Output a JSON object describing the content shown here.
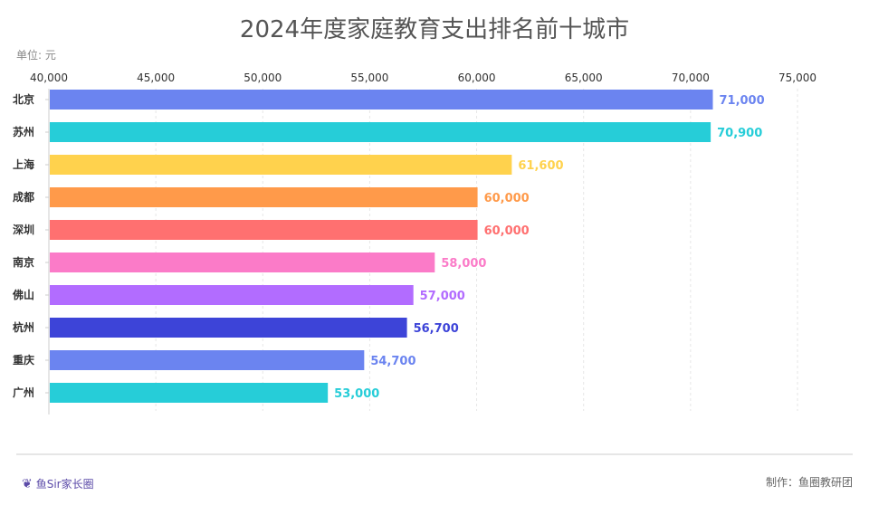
{
  "chart_data": {
    "type": "bar",
    "orientation": "horizontal",
    "title": "2024年度家庭教育支出排名前十城市",
    "unit_label": "单位: 元",
    "categories": [
      "北京",
      "苏州",
      "上海",
      "成都",
      "深圳",
      "南京",
      "佛山",
      "杭州",
      "重庆",
      "广州"
    ],
    "values": [
      71000,
      70900,
      61600,
      60000,
      60000,
      58000,
      57000,
      56700,
      54700,
      53000
    ],
    "value_labels": [
      "71,000",
      "70,900",
      "61,600",
      "60,000",
      "60,000",
      "58,000",
      "57,000",
      "56,700",
      "54,700",
      "53,000"
    ],
    "colors": [
      "#6b84f0",
      "#26cdd8",
      "#ffd24d",
      "#ff9a4a",
      "#ff7070",
      "#fb7bc8",
      "#b26cff",
      "#3d44d8",
      "#6b84f0",
      "#26cdd8"
    ],
    "xlim": [
      40000,
      75000
    ],
    "x_ticks": [
      40000,
      45000,
      50000,
      55000,
      60000,
      65000,
      70000,
      75000
    ],
    "x_tick_labels": [
      "40,000",
      "45,000",
      "50,000",
      "55,000",
      "60,000",
      "65,000",
      "70,000",
      "75,000"
    ],
    "x_axis_position": "top",
    "grid": "vertical dashed"
  },
  "footer": {
    "logo_text": "鱼Sir家长圈",
    "credit": "制作：鱼圈教研团"
  }
}
